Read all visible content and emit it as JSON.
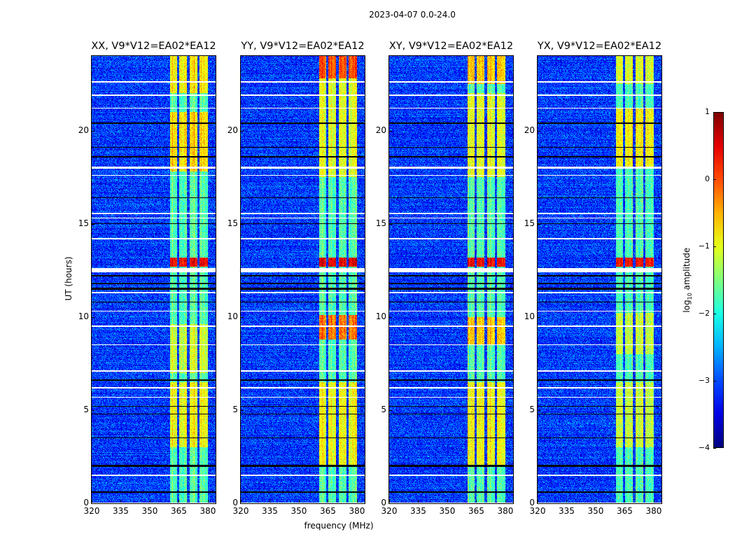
{
  "chart_data": {
    "type": "heatmap",
    "title": "2023-04-07 0.0-24.0",
    "xlabel": "frequency (MHz)",
    "ylabel": "UT (hours)",
    "xlim": [
      320,
      384
    ],
    "ylim": [
      0,
      24
    ],
    "xticks": [
      "320",
      "335",
      "350",
      "365",
      "380"
    ],
    "xtick_values": [
      320,
      335,
      350,
      365,
      380
    ],
    "yticks": [
      "0",
      "5",
      "10",
      "15",
      "20"
    ],
    "ytick_values": [
      0,
      5,
      10,
      15,
      20
    ],
    "colormap": "jet",
    "colorbar": {
      "label_main": "log",
      "label_sub": "10",
      "label_rest": " amplitude",
      "range": [
        -4,
        1
      ],
      "ticks": [
        "1",
        "0",
        "−1",
        "−2",
        "−3",
        "−4"
      ],
      "tick_values": [
        1,
        0,
        -1,
        -2,
        -3,
        -4
      ]
    },
    "background_level": -3.1,
    "band": {
      "range_mhz": [
        360.5,
        380
      ],
      "gaps_mhz": [
        364.8,
        369.9,
        375.3
      ],
      "default_level": -1.7
    },
    "flagged_hours": [
      [
        22.6,
        0.08
      ],
      [
        21.9,
        0.05
      ],
      [
        21.2,
        0.05
      ],
      [
        18.0,
        0.1
      ],
      [
        17.6,
        0.06
      ],
      [
        15.55,
        0.06
      ],
      [
        15.3,
        0.05
      ],
      [
        14.2,
        0.05
      ],
      [
        12.5,
        0.22
      ],
      [
        11.3,
        0.07
      ],
      [
        10.3,
        0.05
      ],
      [
        9.5,
        0.05
      ],
      [
        8.5,
        0.05
      ],
      [
        7.1,
        0.05
      ],
      [
        6.2,
        0.05
      ],
      [
        5.7,
        0.05
      ],
      [
        1.5,
        0.05
      ],
      [
        0.02,
        0.04
      ]
    ],
    "dark_hours": [
      [
        20.4,
        0.08
      ],
      [
        19.1,
        0.06
      ],
      [
        18.6,
        0.06
      ],
      [
        16.4,
        0.05
      ],
      [
        15.0,
        0.06
      ],
      [
        12.2,
        0.06
      ],
      [
        11.8,
        0.08
      ],
      [
        11.5,
        0.1
      ],
      [
        10.8,
        0.05
      ],
      [
        6.6,
        0.06
      ],
      [
        5.2,
        0.05
      ],
      [
        4.8,
        0.05
      ],
      [
        3.5,
        0.05
      ],
      [
        2.0,
        0.12
      ],
      [
        0.6,
        0.06
      ]
    ],
    "panels": [
      {
        "title": "XX, V9*V12=EA02*EA12",
        "bright": [
          [
            12.7,
            13.2,
            0.4
          ],
          [
            17.8,
            21,
            -0.7
          ],
          [
            22,
            24,
            -0.8
          ],
          [
            3,
            6.5,
            -0.9
          ],
          [
            7,
            9.6,
            -1.1
          ]
        ]
      },
      {
        "title": "YY, V9*V12=EA02*EA12",
        "bright": [
          [
            12.7,
            13.2,
            0.5
          ],
          [
            22.8,
            24,
            0.0
          ],
          [
            8.8,
            10.1,
            -0.2
          ],
          [
            17.5,
            24,
            -1.0
          ],
          [
            2,
            6.5,
            -0.9
          ]
        ]
      },
      {
        "title": "XY, V9*V12=EA02*EA12",
        "bright": [
          [
            12.7,
            13.2,
            0.4
          ],
          [
            22.5,
            24,
            -0.6
          ],
          [
            8.5,
            10,
            -0.6
          ],
          [
            17.5,
            22,
            -1.0
          ],
          [
            2,
            6.5,
            -0.9
          ]
        ]
      },
      {
        "title": "YX, V9*V12=EA02*EA12",
        "bright": [
          [
            12.7,
            13.2,
            0.4
          ],
          [
            18,
            21.2,
            -0.8
          ],
          [
            22.5,
            24,
            -1.0
          ],
          [
            8,
            10.2,
            -1.1
          ],
          [
            3,
            6.5,
            -1.1
          ]
        ]
      }
    ]
  }
}
